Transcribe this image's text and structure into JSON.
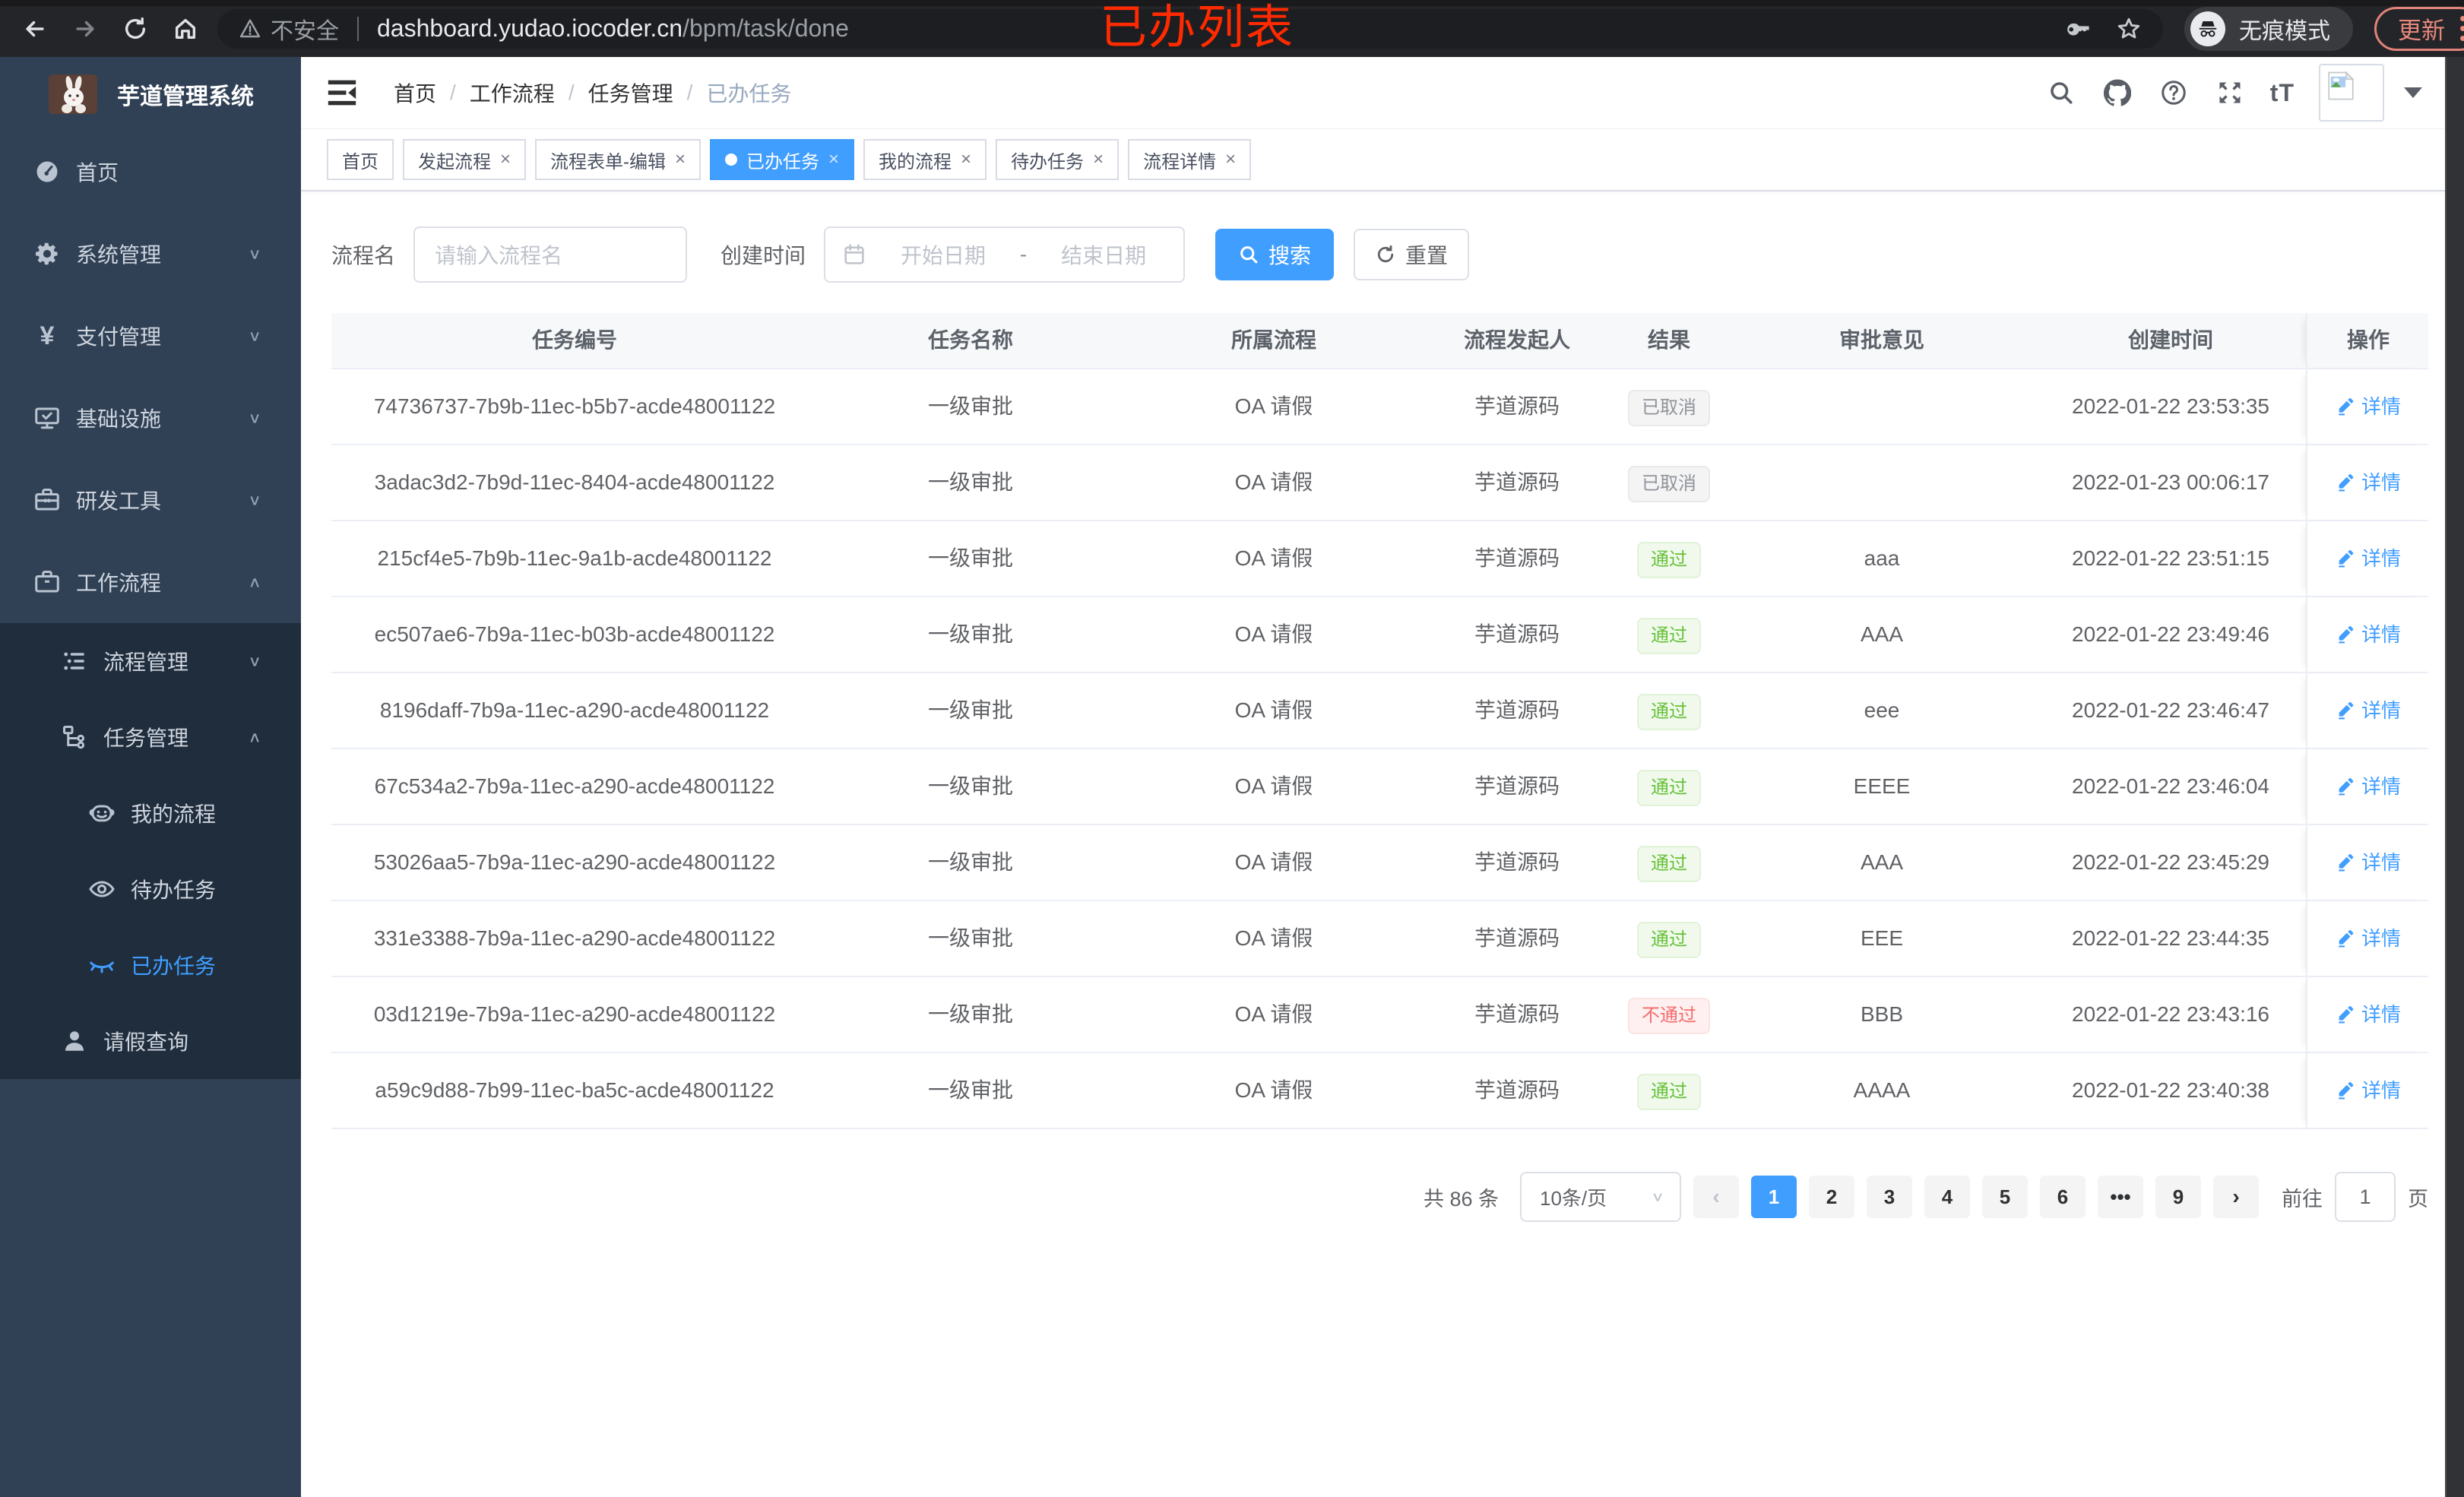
{
  "chrome": {
    "insecure_label": "不安全",
    "url_host": "dashboard.yudao.iocoder.cn",
    "url_path": "/bpm/task/done",
    "incognito_label": "无痕模式",
    "update_label": "更新"
  },
  "annotation": {
    "text": "已办列表",
    "color": "#ff2a00"
  },
  "sidebar": {
    "title": "芋道管理系统",
    "items": [
      {
        "label": "首页",
        "icon": "dashboard-icon",
        "level": 1,
        "chevron": null,
        "sub": false,
        "active": false
      },
      {
        "label": "系统管理",
        "icon": "gear-icon",
        "level": 1,
        "chevron": "down",
        "sub": false,
        "active": false
      },
      {
        "label": "支付管理",
        "icon": "yen-icon",
        "level": 1,
        "chevron": "down",
        "sub": false,
        "active": false
      },
      {
        "label": "基础设施",
        "icon": "monitor-icon",
        "level": 1,
        "chevron": "down",
        "sub": false,
        "active": false
      },
      {
        "label": "研发工具",
        "icon": "toolbox-icon",
        "level": 1,
        "chevron": "down",
        "sub": false,
        "active": false
      },
      {
        "label": "工作流程",
        "icon": "briefcase-icon",
        "level": 1,
        "chevron": "up",
        "sub": false,
        "active": false
      },
      {
        "label": "流程管理",
        "icon": "list-tree-icon",
        "level": 2,
        "chevron": "down",
        "sub": true,
        "active": false
      },
      {
        "label": "任务管理",
        "icon": "org-tree-icon",
        "level": 2,
        "chevron": "up",
        "sub": true,
        "active": false
      },
      {
        "label": "我的流程",
        "icon": "face-icon",
        "level": 3,
        "chevron": null,
        "sub": true,
        "active": false
      },
      {
        "label": "待办任务",
        "icon": "eye-icon",
        "level": 3,
        "chevron": null,
        "sub": true,
        "active": false
      },
      {
        "label": "已办任务",
        "icon": "eye-closed-icon",
        "level": 3,
        "chevron": null,
        "sub": true,
        "active": true
      },
      {
        "label": "请假查询",
        "icon": "user-icon",
        "level": 2,
        "chevron": null,
        "sub": true,
        "active": false
      }
    ]
  },
  "header": {
    "breadcrumb": [
      "首页",
      "工作流程",
      "任务管理",
      "已办任务"
    ],
    "font_size_label": "tT"
  },
  "tabs": [
    {
      "label": "首页",
      "closable": false,
      "active": false
    },
    {
      "label": "发起流程",
      "closable": true,
      "active": false
    },
    {
      "label": "流程表单-编辑",
      "closable": true,
      "active": false
    },
    {
      "label": "已办任务",
      "closable": true,
      "active": true
    },
    {
      "label": "我的流程",
      "closable": true,
      "active": false
    },
    {
      "label": "待办任务",
      "closable": true,
      "active": false
    },
    {
      "label": "流程详情",
      "closable": true,
      "active": false
    }
  ],
  "filters": {
    "name_label": "流程名",
    "name_placeholder": "请输入流程名",
    "date_label": "创建时间",
    "date_start_placeholder": "开始日期",
    "date_separator": "-",
    "date_end_placeholder": "结束日期",
    "search_label": "搜索",
    "reset_label": "重置"
  },
  "table": {
    "columns": [
      "任务编号",
      "任务名称",
      "所属流程",
      "流程发起人",
      "结果",
      "审批意见",
      "创建时间",
      "操作"
    ],
    "detail_label": "详情",
    "rows": [
      {
        "id": "74736737-7b9b-11ec-b5b7-acde48001122",
        "name": "一级审批",
        "process": "OA 请假",
        "starter": "芋道源码",
        "result": "已取消",
        "result_type": "info",
        "comment": "",
        "created": "2022-01-22 23:53:35"
      },
      {
        "id": "3adac3d2-7b9d-11ec-8404-acde48001122",
        "name": "一级审批",
        "process": "OA 请假",
        "starter": "芋道源码",
        "result": "已取消",
        "result_type": "info",
        "comment": "",
        "created": "2022-01-23 00:06:17"
      },
      {
        "id": "215cf4e5-7b9b-11ec-9a1b-acde48001122",
        "name": "一级审批",
        "process": "OA 请假",
        "starter": "芋道源码",
        "result": "通过",
        "result_type": "success",
        "comment": "aaa",
        "created": "2022-01-22 23:51:15"
      },
      {
        "id": "ec507ae6-7b9a-11ec-b03b-acde48001122",
        "name": "一级审批",
        "process": "OA 请假",
        "starter": "芋道源码",
        "result": "通过",
        "result_type": "success",
        "comment": "AAA",
        "created": "2022-01-22 23:49:46"
      },
      {
        "id": "8196daff-7b9a-11ec-a290-acde48001122",
        "name": "一级审批",
        "process": "OA 请假",
        "starter": "芋道源码",
        "result": "通过",
        "result_type": "success",
        "comment": "eee",
        "created": "2022-01-22 23:46:47"
      },
      {
        "id": "67c534a2-7b9a-11ec-a290-acde48001122",
        "name": "一级审批",
        "process": "OA 请假",
        "starter": "芋道源码",
        "result": "通过",
        "result_type": "success",
        "comment": "EEEE",
        "created": "2022-01-22 23:46:04"
      },
      {
        "id": "53026aa5-7b9a-11ec-a290-acde48001122",
        "name": "一级审批",
        "process": "OA 请假",
        "starter": "芋道源码",
        "result": "通过",
        "result_type": "success",
        "comment": "AAA",
        "created": "2022-01-22 23:45:29"
      },
      {
        "id": "331e3388-7b9a-11ec-a290-acde48001122",
        "name": "一级审批",
        "process": "OA 请假",
        "starter": "芋道源码",
        "result": "通过",
        "result_type": "success",
        "comment": "EEE",
        "created": "2022-01-22 23:44:35"
      },
      {
        "id": "03d1219e-7b9a-11ec-a290-acde48001122",
        "name": "一级审批",
        "process": "OA 请假",
        "starter": "芋道源码",
        "result": "不通过",
        "result_type": "danger",
        "comment": "BBB",
        "created": "2022-01-22 23:43:16"
      },
      {
        "id": "a59c9d88-7b99-11ec-ba5c-acde48001122",
        "name": "一级审批",
        "process": "OA 请假",
        "starter": "芋道源码",
        "result": "通过",
        "result_type": "success",
        "comment": "AAAA",
        "created": "2022-01-22 23:40:38"
      }
    ]
  },
  "pagination": {
    "total_label": "共 86 条",
    "page_size": "10条/页",
    "prev": "‹",
    "next": "›",
    "pages": [
      "1",
      "2",
      "3",
      "4",
      "5",
      "6",
      "•••",
      "9"
    ],
    "active_page": "1",
    "goto_label": "前往",
    "goto_value": "1",
    "goto_suffix": "页"
  },
  "colors": {
    "accent": "#409eff",
    "success": "#67c23a",
    "danger": "#f56c6c",
    "info": "#909399",
    "sidebar_bg": "#304156",
    "submenu_bg": "#1f2d3d",
    "update_button": "#e0837a",
    "annotation": "#ff2a00"
  }
}
